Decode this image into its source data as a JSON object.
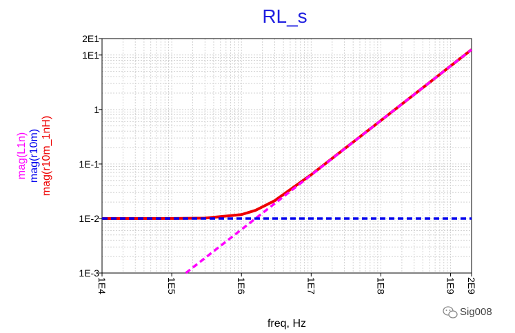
{
  "chart_data": {
    "type": "line",
    "title": "RL_s",
    "xlabel": "freq, Hz",
    "xscale": "log",
    "yscale": "log",
    "xlim": [
      10000,
      2000000000
    ],
    "ylim": [
      0.001,
      20
    ],
    "x_ticks": [
      {
        "value": 10000,
        "label": "1E4"
      },
      {
        "value": 100000,
        "label": "1E5"
      },
      {
        "value": 1000000,
        "label": "1E6"
      },
      {
        "value": 10000000,
        "label": "1E7"
      },
      {
        "value": 100000000,
        "label": "1E8"
      },
      {
        "value": 1000000000,
        "label": "1E9"
      },
      {
        "value": 2000000000,
        "label": "2E9"
      }
    ],
    "y_ticks": [
      {
        "value": 0.001,
        "label": "1E-3"
      },
      {
        "value": 0.01,
        "label": "1E-2"
      },
      {
        "value": 0.1,
        "label": "1E-1"
      },
      {
        "value": 1,
        "label": "1"
      },
      {
        "value": 10,
        "label": "1E1"
      },
      {
        "value": 20,
        "label": "2E1"
      }
    ],
    "grid": true,
    "series": [
      {
        "name": "mag(L1n)",
        "color": "#ff00ff",
        "style": "dashed",
        "x": [
          159155,
          2000000000
        ],
        "y": [
          0.001,
          12.566
        ]
      },
      {
        "name": "mag(r10m)",
        "color": "#0000ee",
        "style": "dashed",
        "x": [
          10000,
          2000000000
        ],
        "y": [
          0.01,
          0.01
        ]
      },
      {
        "name": "mag(r10m_1nH)",
        "color": "#ee0000",
        "style": "solid",
        "x": [
          10000,
          100000,
          300000,
          1000000,
          1591550,
          3000000,
          10000000,
          100000000,
          1000000000,
          2000000000
        ],
        "y": [
          0.01,
          0.01002,
          0.01018,
          0.01181,
          0.01414,
          0.02126,
          0.06362,
          0.6284,
          6.2832,
          12.566
        ]
      }
    ]
  },
  "watermark": {
    "text": "Sig008",
    "icon": "wechat-icon"
  }
}
